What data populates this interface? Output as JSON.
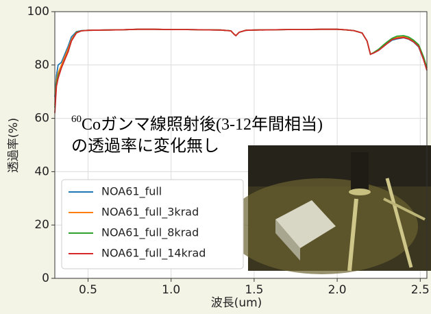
{
  "chart_data": {
    "type": "line",
    "y_label": "透過率(%)",
    "x_label": "波長(um)",
    "annotation": {
      "superscript": "60",
      "line1": "Coガンマ線照射後(3-12年間相当)",
      "line2": "の透過率に変化無し"
    },
    "x": [
      0.3,
      0.31,
      0.32,
      0.34,
      0.36,
      0.38,
      0.4,
      0.43,
      0.46,
      0.5,
      0.6,
      0.7,
      0.8,
      0.9,
      1.0,
      1.1,
      1.2,
      1.3,
      1.36,
      1.38,
      1.39,
      1.41,
      1.45,
      1.5,
      1.6,
      1.7,
      1.8,
      1.9,
      2.0,
      2.05,
      2.1,
      2.15,
      2.18,
      2.2,
      2.22,
      2.25,
      2.28,
      2.3,
      2.33,
      2.36,
      2.4,
      2.43,
      2.46,
      2.49,
      2.52,
      2.54
    ],
    "series": [
      {
        "name": "NOA61_full",
        "color": "#1f77b4",
        "values": [
          68,
          76,
          80,
          81,
          84,
          87,
          90.5,
          92.5,
          92.9,
          93,
          93.1,
          93.2,
          93.4,
          93.4,
          93.3,
          93.3,
          93.2,
          93.1,
          92.8,
          91.5,
          91,
          92.3,
          93,
          93.1,
          93.2,
          93.3,
          93.3,
          93.4,
          93.4,
          93.2,
          92.9,
          92,
          89,
          84,
          84.5,
          85.5,
          87,
          88,
          89.3,
          89.8,
          90.2,
          89.7,
          88.6,
          86.8,
          82,
          78
        ]
      },
      {
        "name": "NOA61_full_3krad",
        "color": "#ff7f0e",
        "values": [
          65,
          74,
          77,
          80,
          83,
          86,
          89.5,
          92.3,
          92.8,
          93,
          93.1,
          93.2,
          93.4,
          93.4,
          93.3,
          93.3,
          93.2,
          93.1,
          92.8,
          91.5,
          91,
          92.3,
          93,
          93.1,
          93.2,
          93.3,
          93.3,
          93.4,
          93.4,
          93.2,
          92.9,
          92,
          89,
          84,
          84.6,
          85.7,
          87.3,
          88.3,
          89.7,
          90.3,
          90.6,
          90,
          88.9,
          87.2,
          82.5,
          78.5
        ]
      },
      {
        "name": "NOA61_full_8krad",
        "color": "#2ca02c",
        "values": [
          64,
          73,
          76,
          79,
          82,
          85,
          89,
          92.2,
          92.8,
          93,
          93.1,
          93.2,
          93.4,
          93.4,
          93.3,
          93.3,
          93.2,
          93.1,
          92.8,
          91.5,
          91,
          92.3,
          93,
          93.1,
          93.2,
          93.3,
          93.3,
          93.4,
          93.4,
          93.2,
          92.9,
          92,
          89,
          84,
          84.7,
          85.9,
          87.6,
          88.6,
          90,
          90.8,
          91,
          90.5,
          89.3,
          87.6,
          83,
          79
        ]
      },
      {
        "name": "NOA61_full_14krad",
        "color": "#d62728",
        "values": [
          62,
          72,
          75,
          79,
          82,
          85,
          89,
          92,
          92.8,
          93,
          93.1,
          93.2,
          93.4,
          93.4,
          93.3,
          93.3,
          93.2,
          93.1,
          92.8,
          91.5,
          91,
          92.3,
          93,
          93.1,
          93.2,
          93.3,
          93.3,
          93.4,
          93.4,
          93.2,
          92.9,
          92,
          89,
          84,
          84.5,
          85.5,
          87,
          88,
          89.5,
          90,
          90.3,
          89.8,
          88.7,
          87,
          82,
          78
        ]
      }
    ],
    "xlim": [
      0.3,
      2.54
    ],
    "ylim": [
      0,
      100
    ],
    "xticks": [
      0.5,
      {
        "value": 1,
        "label": "1.0"
      },
      1.5,
      {
        "value": 2,
        "label": "2.0"
      },
      2.5
    ],
    "yticks": [
      0,
      20,
      40,
      60,
      80,
      100
    ],
    "grid": true,
    "legend": "lower left"
  }
}
